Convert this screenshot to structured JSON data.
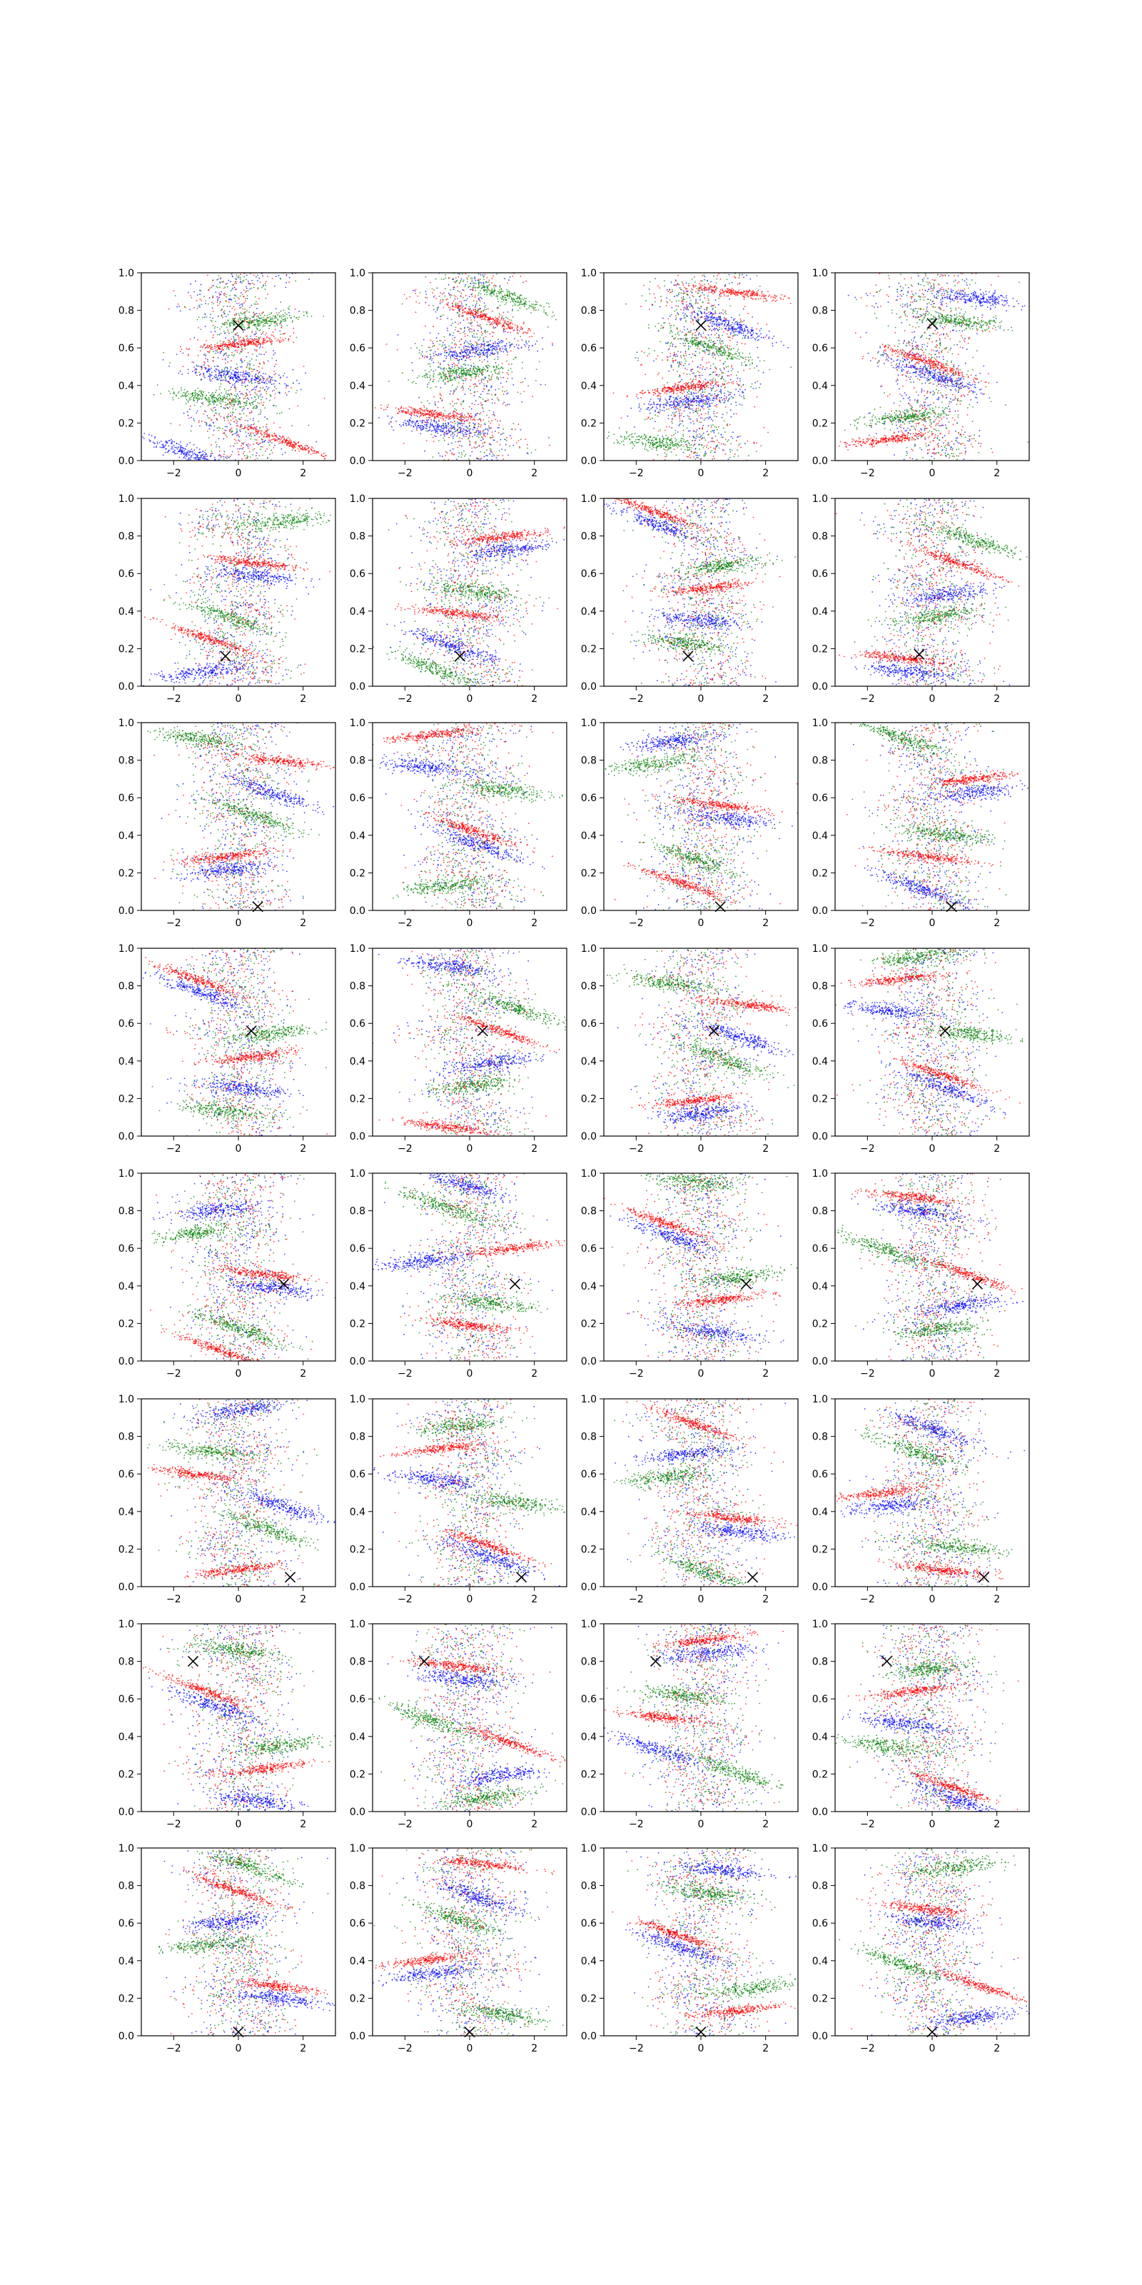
{
  "figure": {
    "rows": 8,
    "cols": 4
  },
  "axes": {
    "xlim": [
      -3,
      3
    ],
    "ylim": [
      0,
      1
    ],
    "x_ticks": [
      -2,
      0,
      2
    ],
    "y_ticks": [
      0.0,
      0.2,
      0.4,
      0.6,
      0.8,
      1.0
    ],
    "x_tick_labels": [
      "−2",
      "0",
      "2"
    ],
    "y_tick_labels": [
      "0.0",
      "0.2",
      "0.4",
      "0.6",
      "0.8",
      "1.0"
    ]
  },
  "colors": {
    "series_red": "#ff0000",
    "series_green": "#008000",
    "series_blue": "#0000ff",
    "marker": "#000000"
  },
  "chart_data": {
    "type": "scatter",
    "series": [
      {
        "color": "red"
      },
      {
        "color": "green"
      },
      {
        "color": "blue"
      }
    ],
    "marker": "x",
    "grid": false,
    "panels": [
      {
        "row": 0,
        "col": 0,
        "marker": [
          0.0,
          0.72
        ]
      },
      {
        "row": 0,
        "col": 1,
        "marker": null
      },
      {
        "row": 0,
        "col": 2,
        "marker": [
          0.0,
          0.72
        ]
      },
      {
        "row": 0,
        "col": 3,
        "marker": [
          0.0,
          0.73
        ]
      },
      {
        "row": 1,
        "col": 0,
        "marker": [
          -0.4,
          0.16
        ]
      },
      {
        "row": 1,
        "col": 1,
        "marker": [
          -0.3,
          0.16
        ]
      },
      {
        "row": 1,
        "col": 2,
        "marker": [
          -0.4,
          0.16
        ]
      },
      {
        "row": 1,
        "col": 3,
        "marker": [
          -0.4,
          0.17
        ]
      },
      {
        "row": 2,
        "col": 0,
        "marker": [
          0.6,
          0.02
        ]
      },
      {
        "row": 2,
        "col": 1,
        "marker": null
      },
      {
        "row": 2,
        "col": 2,
        "marker": [
          0.6,
          0.02
        ]
      },
      {
        "row": 2,
        "col": 3,
        "marker": [
          0.6,
          0.02
        ]
      },
      {
        "row": 3,
        "col": 0,
        "marker": [
          0.4,
          0.56
        ]
      },
      {
        "row": 3,
        "col": 1,
        "marker": [
          0.4,
          0.56
        ]
      },
      {
        "row": 3,
        "col": 2,
        "marker": [
          0.4,
          0.56
        ]
      },
      {
        "row": 3,
        "col": 3,
        "marker": [
          0.4,
          0.56
        ]
      },
      {
        "row": 4,
        "col": 0,
        "marker": [
          1.4,
          0.41
        ]
      },
      {
        "row": 4,
        "col": 1,
        "marker": [
          1.4,
          0.41
        ]
      },
      {
        "row": 4,
        "col": 2,
        "marker": [
          1.4,
          0.41
        ]
      },
      {
        "row": 4,
        "col": 3,
        "marker": [
          1.4,
          0.41
        ]
      },
      {
        "row": 5,
        "col": 0,
        "marker": [
          1.6,
          0.05
        ]
      },
      {
        "row": 5,
        "col": 1,
        "marker": [
          1.6,
          0.05
        ]
      },
      {
        "row": 5,
        "col": 2,
        "marker": [
          1.6,
          0.05
        ]
      },
      {
        "row": 5,
        "col": 3,
        "marker": [
          1.6,
          0.05
        ]
      },
      {
        "row": 6,
        "col": 0,
        "marker": [
          -1.4,
          0.8
        ]
      },
      {
        "row": 6,
        "col": 1,
        "marker": [
          -1.4,
          0.8
        ]
      },
      {
        "row": 6,
        "col": 2,
        "marker": [
          -1.4,
          0.8
        ]
      },
      {
        "row": 6,
        "col": 3,
        "marker": [
          -1.4,
          0.8
        ]
      },
      {
        "row": 7,
        "col": 0,
        "marker": [
          0.0,
          0.02
        ]
      },
      {
        "row": 7,
        "col": 1,
        "marker": [
          0.0,
          0.02
        ]
      },
      {
        "row": 7,
        "col": 2,
        "marker": [
          0.0,
          0.02
        ]
      },
      {
        "row": 7,
        "col": 3,
        "marker": [
          0.0,
          0.02
        ]
      }
    ]
  }
}
